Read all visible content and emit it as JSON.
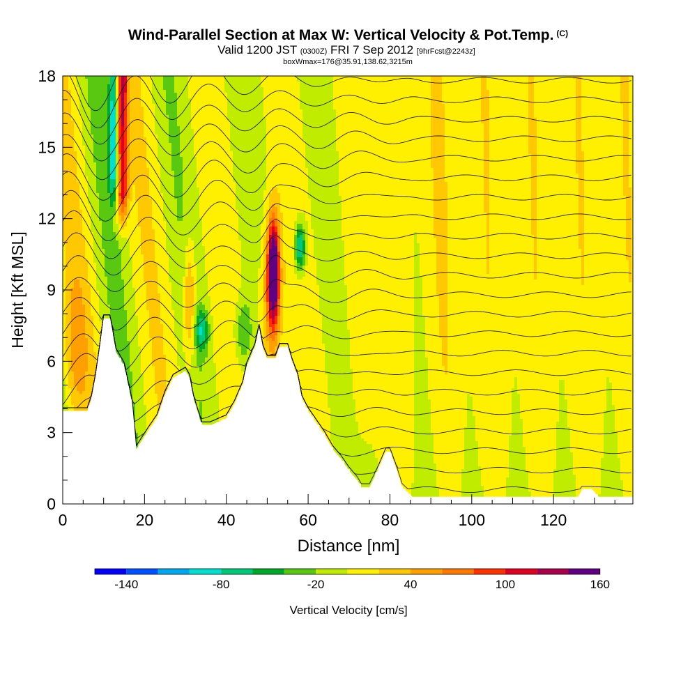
{
  "title": {
    "main": "Wind-Parallel Section at Max W: Vertical Velocity & Pot.Temp.",
    "copyright": "(C)",
    "valid_prefix": "Valid 1200 JST",
    "valid_utc": "(0300Z)",
    "valid_date": "FRI 7 Sep 2012",
    "forecast": "[9hrFcst@2243z]",
    "box_info": "boxWmax=176@35.91,138.62,3215m"
  },
  "chart_data": {
    "type": "heatmap",
    "xlabel": "Distance [nm]",
    "ylabel": "Height [Kft MSL]",
    "xlim": [
      0,
      139.4
    ],
    "ylim": [
      0,
      18
    ],
    "x_ticks": [
      "0",
      "20",
      "40",
      "60",
      "80",
      "100",
      "120"
    ],
    "x_tick_values": [
      0,
      20,
      40,
      60,
      80,
      100,
      120
    ],
    "y_ticks": [
      "0",
      "3",
      "6",
      "9",
      "12",
      "15",
      "18"
    ],
    "y_tick_values": [
      0,
      3,
      6,
      9,
      12,
      15,
      18
    ],
    "colorbar": {
      "label": "Vertical Velocity [cm/s]",
      "tick_labels": [
        "-140",
        "-80",
        "-20",
        "40",
        "100",
        "160"
      ],
      "tick_values": [
        -140,
        -80,
        -20,
        40,
        100,
        160
      ],
      "colors": [
        "#0000ff",
        "#0050ff",
        "#00a8f0",
        "#00e0d0",
        "#00c878",
        "#00a82a",
        "#58c810",
        "#c0ec00",
        "#fff000",
        "#ffc800",
        "#ffa000",
        "#ff7800",
        "#ff3000",
        "#e00020",
        "#a8004a",
        "#600080"
      ]
    },
    "terrain_kft": [
      [
        0,
        3.9
      ],
      [
        6,
        3.9
      ],
      [
        7,
        4.4
      ],
      [
        8,
        5.3
      ],
      [
        9,
        6.5
      ],
      [
        10,
        7.8
      ],
      [
        11.6,
        7.8
      ],
      [
        13,
        6.4
      ],
      [
        15,
        5.8
      ],
      [
        17,
        4.2
      ],
      [
        18,
        2.3
      ],
      [
        19.5,
        2.7
      ],
      [
        21,
        3.1
      ],
      [
        23,
        3.6
      ],
      [
        25,
        4.6
      ],
      [
        27,
        5.3
      ],
      [
        30,
        5.6
      ],
      [
        31,
        5.3
      ],
      [
        32,
        4.4
      ],
      [
        34,
        3.3
      ],
      [
        36,
        3.3
      ],
      [
        40,
        3.6
      ],
      [
        42,
        4.2
      ],
      [
        44,
        5.0
      ],
      [
        45,
        5.8
      ],
      [
        47,
        6.6
      ],
      [
        48,
        7.4
      ],
      [
        49,
        6.5
      ],
      [
        50,
        6.1
      ],
      [
        52,
        6.1
      ],
      [
        53,
        6.6
      ],
      [
        55,
        6.6
      ],
      [
        56,
        6.0
      ],
      [
        57.5,
        5.3
      ],
      [
        58.5,
        4.4
      ],
      [
        60,
        3.9
      ],
      [
        62,
        3.4
      ],
      [
        64,
        2.9
      ],
      [
        66,
        2.3
      ],
      [
        68,
        1.9
      ],
      [
        70,
        1.4
      ],
      [
        72,
        1.0
      ],
      [
        73,
        0.7
      ],
      [
        75,
        0.7
      ],
      [
        77,
        1.4
      ],
      [
        79,
        2.2
      ],
      [
        80,
        2.2
      ],
      [
        81.5,
        1.5
      ],
      [
        83,
        0.7
      ],
      [
        85.5,
        0.3
      ],
      [
        126,
        0.3
      ],
      [
        127,
        0.6
      ],
      [
        129.5,
        0.6
      ],
      [
        131,
        0.3
      ],
      [
        139.4,
        0.3
      ]
    ],
    "vertical_velocity_features_cm_s": [
      {
        "x": 14,
        "z_range": [
          11,
          18
        ],
        "w": 110
      },
      {
        "x": 12.5,
        "z_range": [
          12,
          18
        ],
        "w": -100
      },
      {
        "x": 31,
        "z_range": [
          6,
          11
        ],
        "w": 60
      },
      {
        "x": 34,
        "z_range": [
          6.5,
          8
        ],
        "w": -80
      },
      {
        "x": 51.5,
        "z_range": [
          8,
          12
        ],
        "w": 176
      },
      {
        "x": 58,
        "z_range": [
          10,
          11.5
        ],
        "w": -90
      }
    ],
    "theta_contours_K": [
      306,
      308,
      310,
      312,
      314,
      316,
      318,
      320,
      322,
      324,
      326,
      328,
      330,
      332,
      334,
      336,
      338,
      340,
      342,
      344,
      346,
      348
    ]
  }
}
